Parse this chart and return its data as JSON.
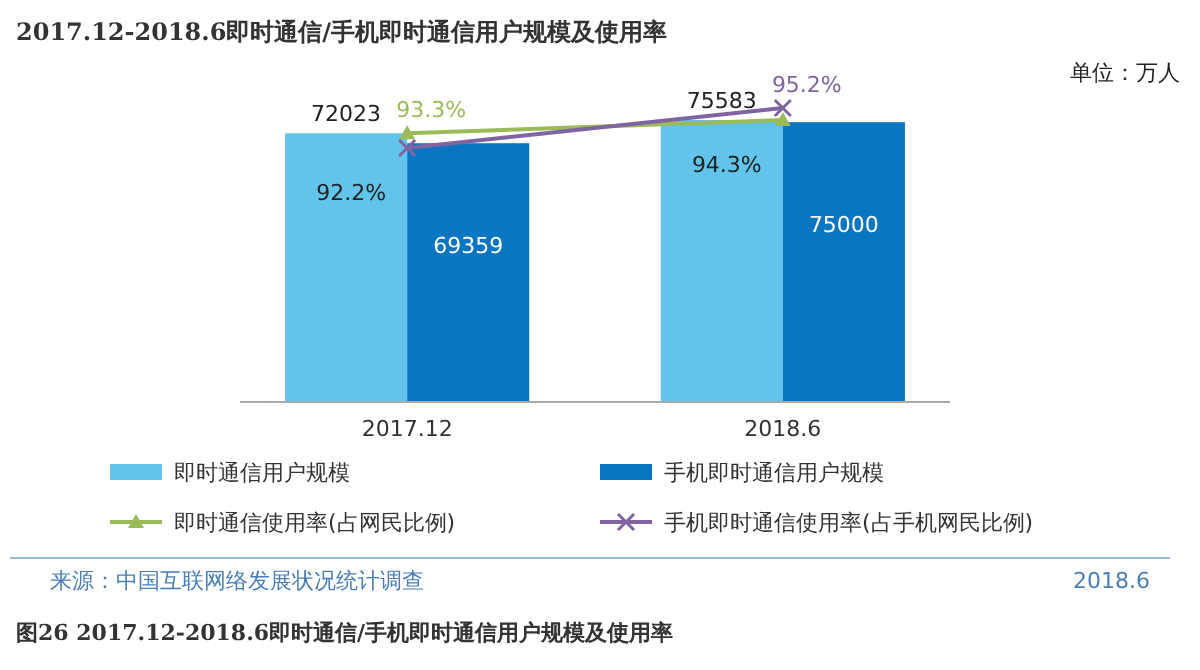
{
  "chart_data": {
    "type": "bar",
    "title": "2017.12-2018.6即时通信/手机即时通信用户规模及使用率",
    "categories": [
      "2017.12",
      "2018.6"
    ],
    "series": [
      {
        "name": "即时通信用户规模",
        "color": "#62c4ea",
        "values": [
          72023,
          75583
        ],
        "value_labels": [
          "72023",
          "75583"
        ]
      },
      {
        "name": "手机即时通信用户规模",
        "color": "#0a76c2",
        "values": [
          69359,
          75000
        ],
        "value_labels": [
          "69359",
          "75000"
        ]
      },
      {
        "name": "即时通信使用率(占网民比例)",
        "type": "line",
        "axis": "y2",
        "color": "#9bbb59",
        "marker": "triangle",
        "values": [
          93.3,
          94.3
        ],
        "value_labels": [
          "93.3%",
          "94.3%"
        ]
      },
      {
        "name": "手机即时通信使用率(占手机网民比例)",
        "type": "line",
        "axis": "y2",
        "color": "#8064a2",
        "marker": "cross",
        "values": [
          92.2,
          95.2
        ],
        "value_labels": [
          "92.2%",
          "95.2%"
        ]
      }
    ],
    "legend": "bottom",
    "annotations": [
      "单位：万人",
      "来源：中国互联网络发展状况统计调查",
      "2018.6",
      "图26  2017.12-2018.6即时通信/手机即时通信用户规模及使用率"
    ]
  }
}
